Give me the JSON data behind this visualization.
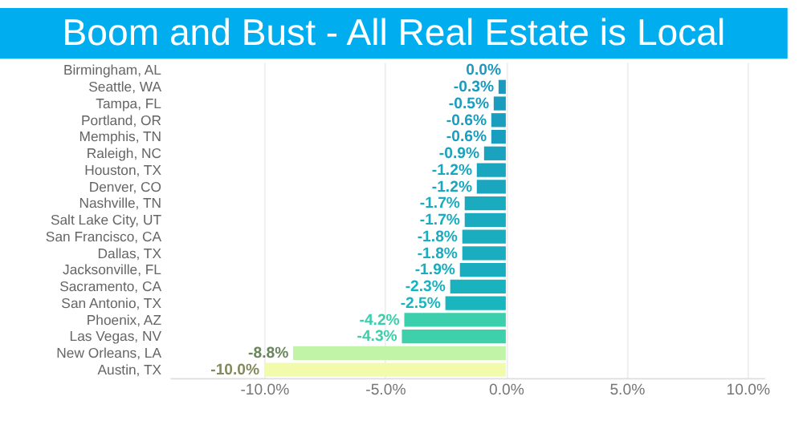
{
  "chart_data": {
    "type": "bar",
    "orientation": "horizontal",
    "title": "Boom and Bust - All Real Estate is Local",
    "categories": [
      "Birmingham, AL",
      "Seattle, WA",
      "Tampa, FL",
      "Portland, OR",
      "Memphis, TN",
      "Raleigh, NC",
      "Houston, TX",
      "Denver, CO",
      "Nashville, TN",
      "Salt Lake City, UT",
      "San Francisco, CA",
      "Dallas, TX",
      "Jacksonville, FL",
      "Sacramento, CA",
      "San Antonio, TX",
      "Phoenix, AZ",
      "Las Vegas, NV",
      "New Orleans, LA",
      "Austin, TX"
    ],
    "values": [
      0.0,
      -0.3,
      -0.5,
      -0.6,
      -0.6,
      -0.9,
      -1.2,
      -1.2,
      -1.7,
      -1.7,
      -1.8,
      -1.8,
      -1.9,
      -2.3,
      -2.5,
      -4.2,
      -4.3,
      -8.8,
      -10.0
    ],
    "value_labels": [
      "0.0%",
      "-0.3%",
      "-0.5%",
      "-0.6%",
      "-0.6%",
      "-0.9%",
      "-1.2%",
      "-1.2%",
      "-1.7%",
      "-1.7%",
      "-1.8%",
      "-1.8%",
      "-1.9%",
      "-2.3%",
      "-2.5%",
      "-4.2%",
      "-4.3%",
      "-8.8%",
      "-10.0%"
    ],
    "colors": [
      "#1a9abf",
      "#1a9abf",
      "#1a9cbf",
      "#1a9ebf",
      "#1a9ebf",
      "#1aa2bf",
      "#1aa6bf",
      "#1aa6bf",
      "#1aabbf",
      "#1aabbf",
      "#1aacbf",
      "#1aacbf",
      "#1aadbf",
      "#1ab2bf",
      "#1ab6bf",
      "#3ccfad",
      "#3ecfab",
      "#c2f4a8",
      "#f2fbab"
    ],
    "xlim": [
      -13.9,
      10.7
    ],
    "xticks": [
      {
        "value": -10,
        "label": "-10.0%"
      },
      {
        "value": -5,
        "label": "-5.0%"
      },
      {
        "value": 0,
        "label": "0.0%"
      },
      {
        "value": 5,
        "label": "5.0%"
      },
      {
        "value": 10,
        "label": "10.0%"
      }
    ],
    "grid": "x"
  }
}
